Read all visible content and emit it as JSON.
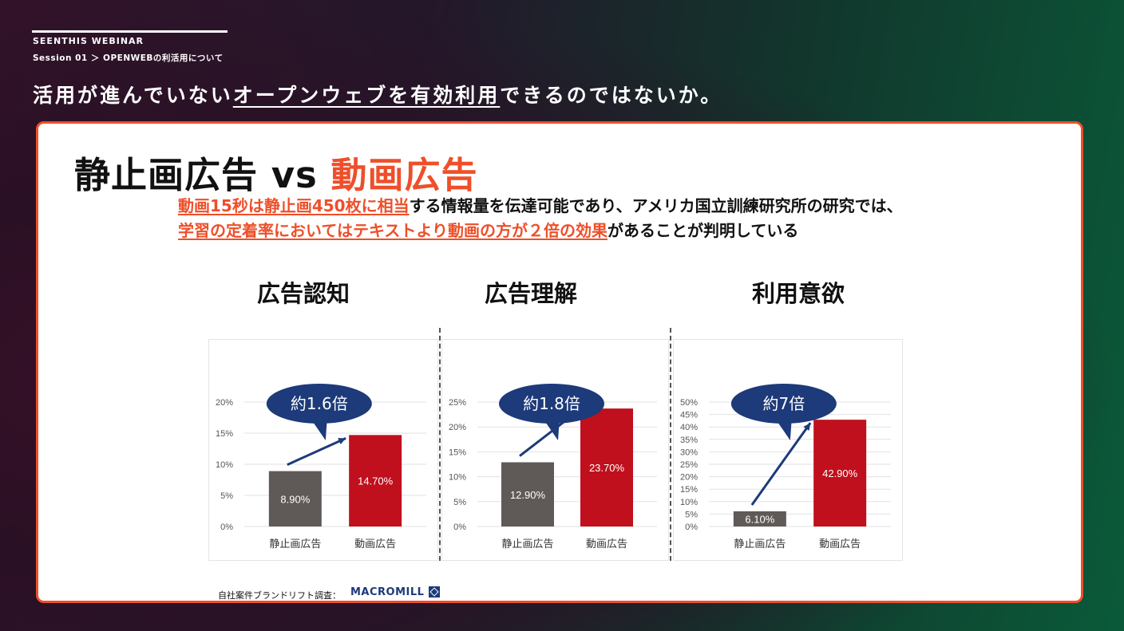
{
  "header": {
    "brand": "SEENTHIS WEBINAR",
    "breadcrumb": "Session 01 ＞ OPENWEBの利活用について",
    "headline_pre": "活用が進んでいない",
    "headline_em": "オープンウェブを有効利用",
    "headline_post": "できるのではないか。"
  },
  "card": {
    "title_a": "静止画広告",
    "title_vs": "vs",
    "title_b": "動画広告",
    "lead_1_accent": "動画15秒は静止画450枚に相当",
    "lead_1_rest": "する情報量を伝達可能であり、アメリカ国立訓練研究所の研究では、",
    "lead_2_accent": "学習の定着率においてはテキストより動画の方が２倍の効果",
    "lead_2_rest": "があることが判明している",
    "source": "自社案件ブランドリフト調査：",
    "logo": "MACROMILL"
  },
  "colors": {
    "accent": "#ee4f2a",
    "bar_static": "#5f5a58",
    "bar_video": "#c0101d",
    "bubble": "#1d3a7a"
  },
  "chart_data": [
    {
      "type": "bar",
      "title": "広告認知",
      "categories": [
        "静止画広告",
        "動画広告"
      ],
      "values": [
        8.9,
        14.7
      ],
      "value_labels": [
        "8.90%",
        "14.70%"
      ],
      "ylim": [
        0,
        20
      ],
      "yticks": [
        0,
        5,
        10,
        15,
        20
      ],
      "ytick_labels": [
        "0%",
        "5%",
        "10%",
        "15%",
        "20%"
      ],
      "annotation": "約1.6倍",
      "grid": true
    },
    {
      "type": "bar",
      "title": "広告理解",
      "categories": [
        "静止画広告",
        "動画広告"
      ],
      "values": [
        12.9,
        23.7
      ],
      "value_labels": [
        "12.90%",
        "23.70%"
      ],
      "ylim": [
        0,
        25
      ],
      "yticks": [
        0,
        5,
        10,
        15,
        20,
        25
      ],
      "ytick_labels": [
        "0%",
        "5%",
        "10%",
        "15%",
        "20%",
        "25%"
      ],
      "annotation": "約1.8倍",
      "grid": true
    },
    {
      "type": "bar",
      "title": "利用意欲",
      "categories": [
        "静止画広告",
        "動画広告"
      ],
      "values": [
        6.1,
        42.9
      ],
      "value_labels": [
        "6.10%",
        "42.90%"
      ],
      "ylim": [
        0,
        50
      ],
      "yticks": [
        0,
        5,
        10,
        15,
        20,
        25,
        30,
        35,
        40,
        45,
        50
      ],
      "ytick_labels": [
        "0%",
        "5%",
        "10%",
        "15%",
        "20%",
        "25%",
        "30%",
        "35%",
        "40%",
        "45%",
        "50%"
      ],
      "annotation": "約7倍",
      "grid": true
    }
  ]
}
